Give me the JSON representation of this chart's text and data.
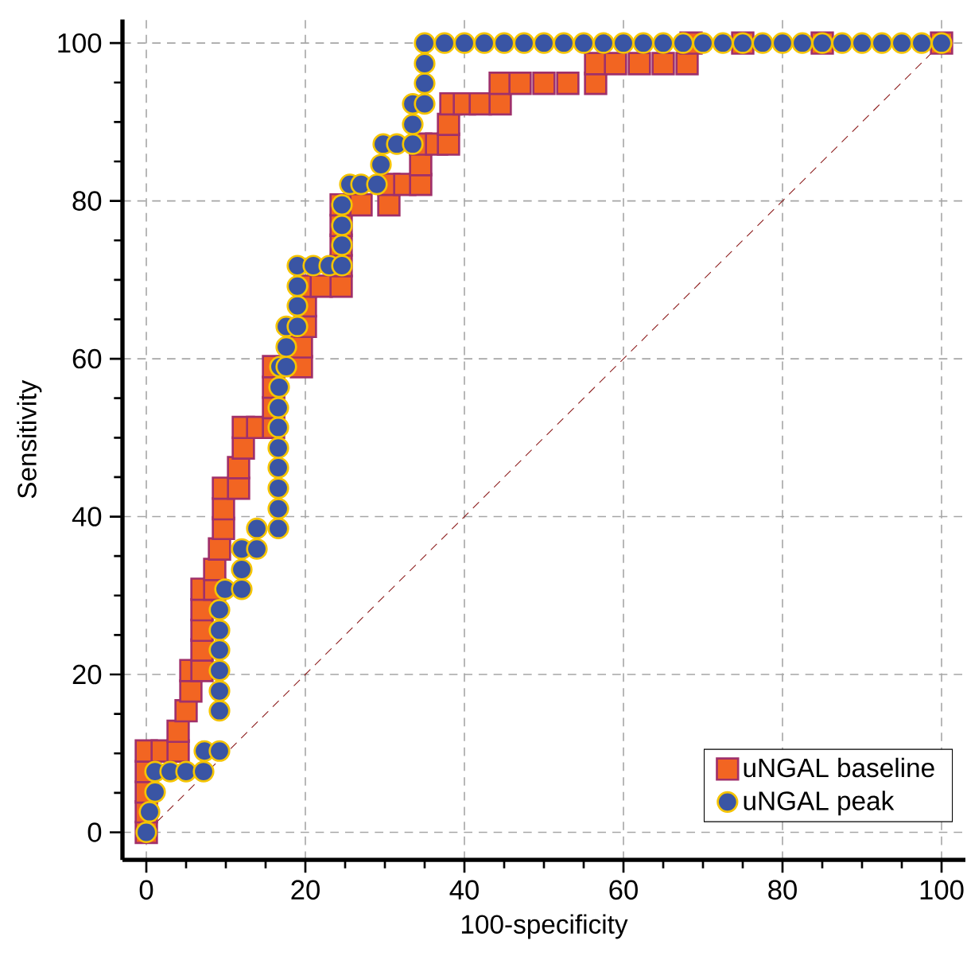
{
  "chart_data": {
    "type": "scatter",
    "xlabel": "100-specificity",
    "ylabel": "Sensitivity",
    "xlim": [
      -3,
      103
    ],
    "ylim": [
      -3.5,
      103
    ],
    "xticks": [
      0,
      20,
      40,
      60,
      80,
      100
    ],
    "yticks": [
      0,
      20,
      40,
      60,
      80,
      100
    ],
    "grid": true,
    "legend": "bottom right",
    "series": [
      {
        "name": "uNGAL baseline",
        "color": "#f26522",
        "marker": "square",
        "x": [
          0,
          0,
          0,
          0,
          0,
          2,
          4,
          4,
          5,
          5.6,
          5.6,
          7,
          7,
          7,
          7,
          7,
          8.6,
          8.6,
          9.2,
          9.7,
          9.7,
          9.7,
          11.6,
          11.6,
          12.2,
          12.2,
          14,
          16,
          16,
          16,
          16,
          19.5,
          19.5,
          20,
          20,
          20,
          22,
          24.5,
          24.5,
          24.5,
          24.5,
          24.5,
          27,
          30.5,
          30.5,
          32.5,
          34.5,
          34.5,
          34.5,
          36.5,
          38,
          38,
          38.3,
          40,
          42,
          44.5,
          44.5,
          47,
          50,
          53,
          56.5,
          56.5,
          59,
          62,
          65,
          68,
          68.5,
          75,
          85,
          100
        ],
        "values": [
          0,
          2.6,
          5.1,
          7.7,
          10.3,
          10.3,
          10.3,
          12.8,
          15.4,
          17.9,
          20.5,
          20.5,
          23.1,
          25.6,
          28.2,
          30.8,
          30.8,
          33.3,
          35.9,
          38.5,
          41.0,
          43.6,
          43.6,
          46.2,
          48.7,
          51.3,
          51.3,
          51.3,
          53.8,
          56.4,
          59.0,
          59.0,
          61.5,
          64.1,
          66.7,
          69.2,
          69.2,
          69.2,
          71.8,
          74.4,
          76.9,
          79.5,
          79.5,
          79.5,
          82.1,
          82.1,
          82.1,
          84.6,
          87.2,
          87.2,
          87.2,
          89.7,
          92.3,
          92.3,
          92.3,
          92.3,
          94.9,
          94.9,
          94.9,
          94.9,
          94.9,
          97.4,
          97.4,
          97.4,
          97.4,
          97.4,
          100,
          100,
          100,
          100
        ]
      },
      {
        "name": "uNGAL peak",
        "color": "#3a55a4",
        "marker": "circle",
        "x": [
          0,
          0.4,
          1.1,
          1.1,
          3,
          5,
          7.2,
          7.3,
          9.2,
          9.2,
          9.2,
          9.2,
          9.2,
          9.2,
          9.2,
          9.9,
          12,
          12,
          12,
          13.9,
          13.9,
          16.6,
          16.6,
          16.6,
          16.6,
          16.6,
          16.6,
          16.6,
          16.7,
          16.8,
          17.6,
          17.6,
          17.6,
          19,
          19,
          19,
          19,
          21,
          23,
          24.6,
          24.6,
          24.6,
          24.6,
          25.6,
          27,
          29,
          29.5,
          29.8,
          31.5,
          33.5,
          33.5,
          33.5,
          35,
          35,
          35,
          35,
          37.5,
          40,
          42.5,
          45,
          47.5,
          50,
          52.5,
          55,
          57.5,
          60,
          62.5,
          65,
          67.5,
          70,
          72.5,
          75,
          77.5,
          80,
          82.5,
          85,
          87.5,
          90,
          92.5,
          95,
          97.5,
          100
        ],
        "values": [
          0,
          2.6,
          5.1,
          7.7,
          7.7,
          7.7,
          7.7,
          10.3,
          10.3,
          15.4,
          17.9,
          20.5,
          23.1,
          25.6,
          28.2,
          30.8,
          30.8,
          33.3,
          35.9,
          35.9,
          38.5,
          38.5,
          41.0,
          43.6,
          46.2,
          48.7,
          51.3,
          53.8,
          56.4,
          59.0,
          59.0,
          61.5,
          64.1,
          64.1,
          66.7,
          69.2,
          71.8,
          71.8,
          71.8,
          71.8,
          74.4,
          76.9,
          79.5,
          82.1,
          82.1,
          82.1,
          84.6,
          87.2,
          87.2,
          87.2,
          89.7,
          92.3,
          92.3,
          94.9,
          97.4,
          100,
          100,
          100,
          100,
          100,
          100,
          100,
          100,
          100,
          100,
          100,
          100,
          100,
          100,
          100,
          100,
          100,
          100,
          100,
          100,
          100,
          100,
          100,
          100,
          100,
          100,
          100
        ]
      },
      {
        "type": "line",
        "color": "#8b1a1a",
        "line_style": "dashed",
        "x": [
          0,
          100
        ],
        "values": [
          0,
          100
        ]
      }
    ]
  }
}
